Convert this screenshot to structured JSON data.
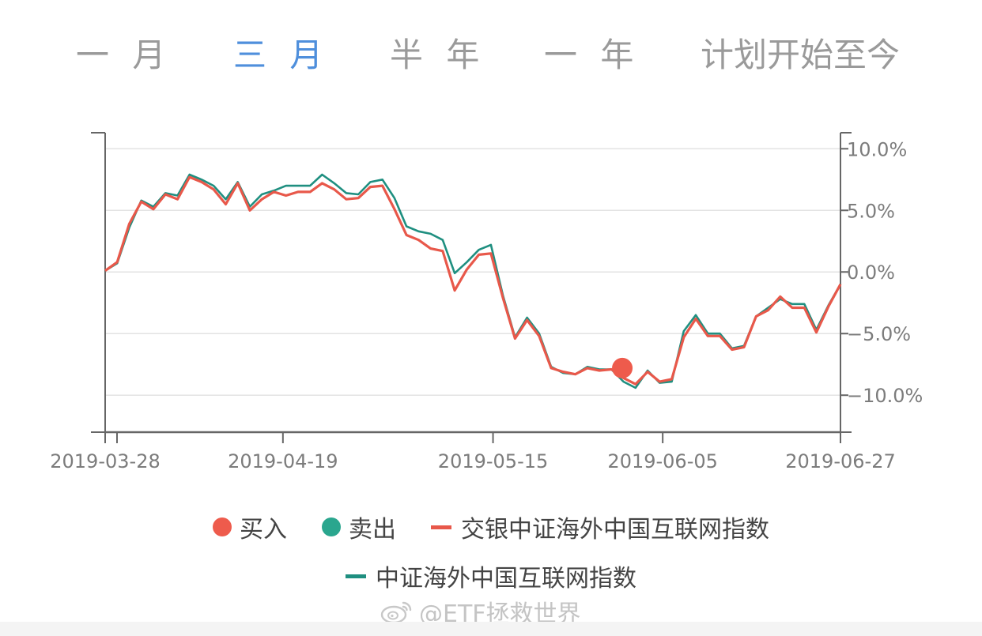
{
  "tabs": [
    {
      "label": "一 月",
      "active": false
    },
    {
      "label": "三 月",
      "active": true
    },
    {
      "label": "半 年",
      "active": false
    },
    {
      "label": "一 年",
      "active": false
    },
    {
      "label": "计划开始至今",
      "active": false
    }
  ],
  "colors": {
    "buy": "#ee5b4c",
    "sell": "#2aa68e",
    "fund_line": "#e8584a",
    "index_line": "#1f8f80",
    "axis": "#666666",
    "grid": "#e3e3e3",
    "tab_active": "#4f8fdc",
    "tab_inactive": "#9a9a9a"
  },
  "legend": {
    "buy": "买入",
    "sell": "卖出",
    "fund": "交银中证海外中国互联网指数",
    "index": "中证海外中国互联网指数"
  },
  "watermark": {
    "icon": "weibo-icon",
    "text": "@ETF拯救世界"
  },
  "chart_data": {
    "type": "line",
    "x_start": "2019-03-28",
    "x_end": "2019-06-27",
    "x_ticks": [
      "2019-03-28",
      "2019-04-19",
      "2019-05-15",
      "2019-06-05",
      "2019-06-27"
    ],
    "y_ticks": [
      "10.0%",
      "5.0%",
      "0.0%",
      "−5.0%",
      "−10.0%"
    ],
    "y_tick_values": [
      10,
      5,
      0,
      -5,
      -10
    ],
    "ylim": [
      -13,
      11.3
    ],
    "y_axis_side": "right",
    "grid": true,
    "legend_position": "bottom",
    "series": [
      {
        "name": "交银中证海外中国互联网指数",
        "role": "fund",
        "values": [
          0.1,
          0.8,
          3.9,
          5.7,
          5.1,
          6.3,
          5.9,
          7.7,
          7.3,
          6.7,
          5.5,
          7.2,
          5.0,
          5.9,
          6.5,
          6.2,
          6.5,
          6.5,
          7.2,
          6.7,
          5.9,
          6.0,
          6.9,
          7.0,
          5.1,
          3.0,
          2.6,
          1.9,
          1.7,
          -1.5,
          0.2,
          1.4,
          1.5,
          -2.1,
          -5.4,
          -3.9,
          -5.2,
          -7.8,
          -8.1,
          -8.3,
          -7.8,
          -8.0,
          -7.9,
          -8.6,
          -9.1,
          -8.1,
          -8.9,
          -8.7,
          -5.3,
          -3.8,
          -5.2,
          -5.2,
          -6.3,
          -6.1,
          -3.6,
          -3.1,
          -2.0,
          -2.9,
          -2.9,
          -4.9,
          -2.8,
          -1.0
        ]
      },
      {
        "name": "中证海外中国互联网指数",
        "role": "index",
        "values": [
          0.1,
          0.7,
          3.6,
          5.8,
          5.3,
          6.4,
          6.2,
          7.9,
          7.5,
          7.0,
          5.9,
          7.3,
          5.3,
          6.3,
          6.6,
          7.0,
          7.0,
          7.0,
          7.9,
          7.2,
          6.4,
          6.3,
          7.3,
          7.5,
          6.0,
          3.7,
          3.3,
          3.1,
          2.6,
          -0.1,
          0.8,
          1.8,
          2.2,
          -1.9,
          -5.3,
          -3.7,
          -5.0,
          -7.7,
          -8.2,
          -8.3,
          -7.7,
          -7.9,
          -7.9,
          -8.9,
          -9.4,
          -8.0,
          -9.0,
          -8.9,
          -4.8,
          -3.5,
          -5.0,
          -5.0,
          -6.2,
          -6.0,
          -3.6,
          -2.9,
          -2.2,
          -2.6,
          -2.6,
          -4.7,
          -2.7,
          -1.0
        ]
      }
    ],
    "buy_points": [
      {
        "date": "2019-05-31",
        "value": -7.8
      }
    ],
    "sell_points": []
  }
}
